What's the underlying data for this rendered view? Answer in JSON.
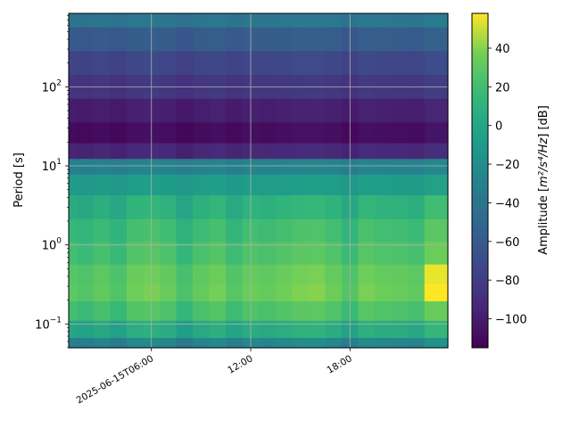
{
  "chart_data": {
    "type": "heatmap",
    "title": "",
    "xlabel": "",
    "ylabel": "Period [s]",
    "y_scale": "log",
    "ylim": [
      0.05,
      850
    ],
    "x_range": [
      "2025-06-15T01:00",
      "2025-06-15T23:55"
    ],
    "grid": true,
    "x_ticks": [
      {
        "value": "2025-06-15T06:00",
        "label": "2025-06-15T06:00"
      },
      {
        "value": "2025-06-15T12:00",
        "label": "12:00"
      },
      {
        "value": "2025-06-15T18:00",
        "label": "18:00"
      }
    ],
    "y_ticks": [
      {
        "value": 0.1,
        "base": "10",
        "exp": "−1"
      },
      {
        "value": 1,
        "base": "10",
        "exp": "0"
      },
      {
        "value": 10,
        "base": "10",
        "exp": "1"
      },
      {
        "value": 100,
        "base": "10",
        "exp": "2"
      }
    ],
    "colorbar": {
      "label_main": "Amplitude [",
      "label_math": "m²/s⁴/Hz",
      "label_end": "] [dB]",
      "range": [
        -115,
        58
      ],
      "ticks": [
        40,
        20,
        0,
        -20,
        -40,
        -60,
        -80,
        -100
      ],
      "tick_labels": [
        "40",
        "20",
        "0",
        "−20",
        "−40",
        "−60",
        "−80",
        "−100"
      ],
      "colormap": "viridis"
    },
    "time_columns": [
      "2025-06-15T01:00",
      "2025-06-15T02:00",
      "2025-06-15T03:00",
      "2025-06-15T04:00",
      "2025-06-15T05:00",
      "2025-06-15T06:00",
      "2025-06-15T07:00",
      "2025-06-15T08:00",
      "2025-06-15T09:00",
      "2025-06-15T10:00",
      "2025-06-15T11:00",
      "2025-06-15T12:00",
      "2025-06-15T13:00",
      "2025-06-15T14:00",
      "2025-06-15T15:00",
      "2025-06-15T16:00",
      "2025-06-15T17:00",
      "2025-06-15T18:00",
      "2025-06-15T19:00",
      "2025-06-15T20:00",
      "2025-06-15T21:00",
      "2025-06-15T22:00",
      "2025-06-15T23:00"
    ],
    "period_bands_s": [
      800,
      400,
      200,
      100,
      50,
      25,
      15,
      10,
      6,
      3,
      1.5,
      0.8,
      0.4,
      0.25,
      0.15,
      0.08,
      0.055
    ],
    "band_levels_db": [
      -40,
      -60,
      -75,
      -85,
      -100,
      -110,
      -95,
      -30,
      -10,
      5,
      15,
      20,
      28,
      30,
      20,
      0,
      -30
    ],
    "column_offsets_db": [
      0,
      -3,
      2,
      -4,
      6,
      8,
      4,
      -6,
      3,
      7,
      -2,
      5,
      3,
      6,
      9,
      10,
      5,
      -3,
      8,
      5,
      4,
      2,
      14
    ],
    "special_cells": [
      {
        "time": "2025-06-15T23:00",
        "period_s": 0.4,
        "value_db": 55
      },
      {
        "time": "2025-06-15T23:00",
        "period_s": 0.25,
        "value_db": 58
      },
      {
        "time": "2025-06-15T23:00",
        "period_s": 0.8,
        "value_db": 35
      }
    ]
  }
}
